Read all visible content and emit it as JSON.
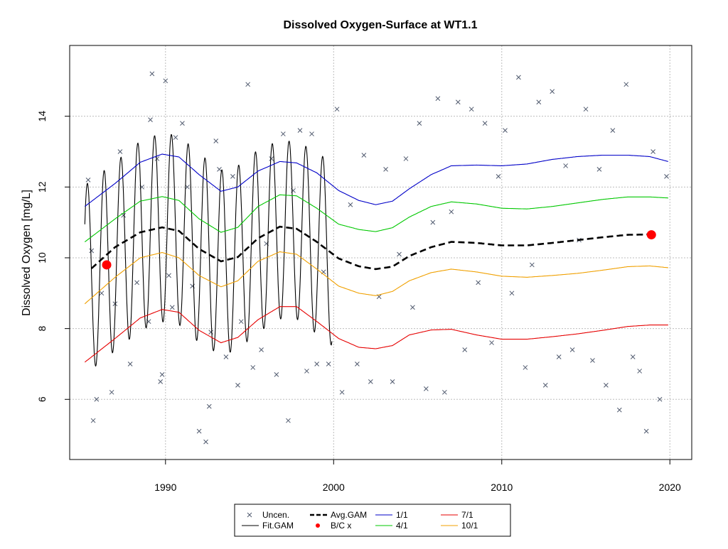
{
  "chart_data": {
    "type": "line",
    "title": "Dissolved Oxygen-Surface at WT1.1",
    "xlabel": "",
    "ylabel": "Dissolved Oxygen [mg/L]",
    "xlim": [
      1984.3,
      2021.3
    ],
    "ylim": [
      4.3,
      16.0
    ],
    "x_ticks": [
      1990,
      2000,
      2010,
      2020
    ],
    "y_ticks": [
      6,
      8,
      10,
      12,
      14
    ],
    "grid": true,
    "legend_position": "bottom",
    "colors": {
      "uncen": "#505a6e",
      "fit": "#000000",
      "avg": "#000000",
      "bc": "#ff0000",
      "p1": "#0000c8",
      "p4": "#00c800",
      "p7": "#e60000",
      "p10": "#f0a000"
    },
    "legend": [
      {
        "key": "uncen",
        "label": "Uncen.",
        "symbol": "cross"
      },
      {
        "key": "avg",
        "label": "Avg.GAM",
        "symbol": "dashed"
      },
      {
        "key": "p1",
        "label": "1/1",
        "symbol": "line"
      },
      {
        "key": "p7",
        "label": "7/1",
        "symbol": "line"
      },
      {
        "key": "fit",
        "label": "Fit.GAM",
        "symbol": "line"
      },
      {
        "key": "bc",
        "label": "B/C x",
        "symbol": "dot"
      },
      {
        "key": "p4",
        "label": "4/1",
        "symbol": "line"
      },
      {
        "key": "p10",
        "label": "10/1",
        "symbol": "line"
      }
    ],
    "series": [
      {
        "key": "p1",
        "name": "1/1",
        "style": "line",
        "x": [
          1985.2,
          1987,
          1988.5,
          1989.8,
          1990.8,
          1992,
          1993.3,
          1994.3,
          1995.5,
          1996.8,
          1997.8,
          1999,
          2000.3,
          2001.5,
          2002.5,
          2003.5,
          2004.5,
          2005.8,
          2007,
          2008.5,
          2010,
          2011.5,
          2013,
          2014.5,
          2016,
          2017.5,
          2018.8,
          2019.9
        ],
        "y": [
          11.45,
          12.1,
          12.7,
          12.93,
          12.85,
          12.35,
          11.88,
          12.0,
          12.45,
          12.72,
          12.68,
          12.4,
          11.9,
          11.62,
          11.5,
          11.6,
          11.95,
          12.35,
          12.6,
          12.62,
          12.6,
          12.65,
          12.78,
          12.86,
          12.9,
          12.9,
          12.86,
          12.72
        ]
      },
      {
        "key": "p4",
        "name": "4/1",
        "style": "line",
        "x": [
          1985.2,
          1987,
          1988.5,
          1989.8,
          1990.8,
          1992,
          1993.3,
          1994.3,
          1995.5,
          1996.8,
          1997.8,
          1999,
          2000.3,
          2001.5,
          2002.5,
          2003.5,
          2004.5,
          2005.8,
          2007,
          2008.5,
          2010,
          2011.5,
          2013,
          2014.5,
          2016,
          2017.5,
          2018.8,
          2019.9
        ],
        "y": [
          10.45,
          11.1,
          11.6,
          11.73,
          11.62,
          11.1,
          10.72,
          10.86,
          11.45,
          11.78,
          11.75,
          11.4,
          10.95,
          10.8,
          10.74,
          10.85,
          11.15,
          11.45,
          11.58,
          11.52,
          11.4,
          11.38,
          11.45,
          11.55,
          11.65,
          11.72,
          11.72,
          11.69
        ]
      },
      {
        "key": "p10",
        "name": "10/1",
        "style": "line",
        "x": [
          1985.2,
          1987,
          1988.5,
          1989.8,
          1990.8,
          1992,
          1993.3,
          1994.3,
          1995.5,
          1996.8,
          1997.8,
          1999,
          2000.3,
          2001.5,
          2002.5,
          2003.5,
          2004.5,
          2005.8,
          2007,
          2008.5,
          2010,
          2011.5,
          2013,
          2014.5,
          2016,
          2017.5,
          2018.8,
          2019.9
        ],
        "y": [
          8.7,
          9.45,
          10.0,
          10.15,
          10.0,
          9.5,
          9.18,
          9.35,
          9.9,
          10.17,
          10.1,
          9.68,
          9.2,
          9.0,
          8.93,
          9.05,
          9.35,
          9.58,
          9.68,
          9.6,
          9.48,
          9.45,
          9.5,
          9.56,
          9.65,
          9.75,
          9.77,
          9.72
        ]
      },
      {
        "key": "p7",
        "name": "7/1",
        "style": "line",
        "x": [
          1985.2,
          1987,
          1988.5,
          1989.8,
          1990.8,
          1992,
          1993.3,
          1994.3,
          1995.5,
          1996.8,
          1997.8,
          1999,
          2000.3,
          2001.5,
          2002.5,
          2003.5,
          2004.5,
          2005.8,
          2007,
          2008.5,
          2010,
          2011.5,
          2013,
          2014.5,
          2016,
          2017.5,
          2018.8,
          2019.9
        ],
        "y": [
          7.05,
          7.72,
          8.3,
          8.54,
          8.46,
          7.95,
          7.6,
          7.75,
          8.25,
          8.62,
          8.62,
          8.2,
          7.72,
          7.47,
          7.43,
          7.52,
          7.82,
          7.96,
          7.98,
          7.82,
          7.7,
          7.7,
          7.77,
          7.85,
          7.95,
          8.06,
          8.1,
          8.1
        ]
      },
      {
        "key": "avg",
        "name": "Avg.GAM",
        "style": "dashed",
        "x": [
          1985.6,
          1987,
          1988.5,
          1989.8,
          1990.8,
          1992,
          1993.3,
          1994.3,
          1995.5,
          1996.8,
          1997.8,
          1999,
          2000.3,
          2001.5,
          2002.5,
          2003.5,
          2004.5,
          2005.8,
          2007,
          2008.5,
          2010,
          2011.5,
          2013,
          2014.5,
          2016,
          2017.5,
          2018.8
        ],
        "y": [
          9.7,
          10.3,
          10.72,
          10.86,
          10.76,
          10.25,
          9.9,
          10.02,
          10.55,
          10.88,
          10.82,
          10.45,
          9.98,
          9.76,
          9.68,
          9.75,
          10.05,
          10.3,
          10.45,
          10.42,
          10.35,
          10.35,
          10.42,
          10.5,
          10.58,
          10.65,
          10.66
        ]
      }
    ],
    "fit_gam": {
      "name": "Fit.GAM",
      "start_year": 1985.2,
      "end_year": 1999.9,
      "period_years": 1,
      "phase": 0.15,
      "amplitude_scale": 1.0,
      "baseline_series": "avg",
      "upper_series": "p1",
      "lower_series": "p7"
    },
    "bc_points": {
      "name": "B/C x",
      "x": [
        1986.5,
        2018.9
      ],
      "y": [
        9.8,
        10.65
      ]
    },
    "uncen_points": {
      "name": "Uncen.",
      "x": [
        1985.4,
        1985.6,
        1985.7,
        1985.9,
        1986.2,
        1986.8,
        1987,
        1987.3,
        1987.5,
        1987.9,
        1988.3,
        1988.6,
        1989,
        1989.1,
        1989.2,
        1989.5,
        1989.7,
        1989.8,
        1990,
        1990.2,
        1990.4,
        1990.6,
        1991,
        1991.3,
        1991.6,
        1992,
        1992.4,
        1992.6,
        1992.7,
        1993,
        1993.2,
        1993.6,
        1994,
        1994.3,
        1994.5,
        1994.9,
        1995.2,
        1995.7,
        1996,
        1996.3,
        1996.6,
        1997,
        1997.3,
        1997.6,
        1998,
        1998.4,
        1998.7,
        1999,
        1999.4,
        1999.7,
        2000.2,
        2000.5,
        2001,
        2001.4,
        2001.8,
        2002.2,
        2002.7,
        2003.1,
        2003.5,
        2003.9,
        2004.3,
        2004.7,
        2005.1,
        2005.5,
        2005.9,
        2006.2,
        2006.6,
        2007,
        2007.4,
        2007.8,
        2008.2,
        2008.6,
        2009,
        2009.4,
        2009.8,
        2010.2,
        2010.6,
        2011,
        2011.4,
        2011.8,
        2012.2,
        2012.6,
        2013,
        2013.4,
        2013.8,
        2014.2,
        2014.6,
        2015,
        2015.4,
        2015.8,
        2016.2,
        2016.6,
        2017,
        2017.4,
        2017.8,
        2018.2,
        2018.6,
        2019,
        2019.4,
        2019.8
      ],
      "y": [
        12.2,
        10.2,
        5.4,
        6.0,
        9.0,
        6.2,
        8.7,
        13.0,
        11.2,
        7.0,
        9.3,
        12.0,
        8.2,
        13.9,
        15.2,
        12.8,
        6.5,
        6.7,
        15.0,
        9.5,
        8.6,
        13.4,
        13.8,
        12.0,
        9.2,
        5.1,
        4.8,
        5.8,
        7.9,
        13.3,
        12.5,
        7.2,
        12.3,
        6.4,
        8.2,
        14.9,
        6.9,
        7.4,
        10.4,
        12.8,
        6.7,
        13.5,
        5.4,
        11.9,
        13.6,
        6.8,
        13.5,
        7.0,
        9.6,
        7.0,
        14.2,
        6.2,
        11.5,
        7.0,
        12.9,
        6.5,
        8.9,
        12.5,
        6.5,
        10.1,
        12.8,
        8.6,
        13.8,
        6.3,
        11.0,
        14.5,
        6.2,
        11.3,
        14.4,
        7.4,
        14.2,
        9.3,
        13.8,
        7.6,
        12.3,
        13.6,
        9.0,
        15.1,
        6.9,
        9.8,
        14.4,
        6.4,
        14.7,
        7.2,
        12.6,
        7.4,
        10.5,
        14.2,
        7.1,
        12.5,
        6.4,
        13.6,
        5.7,
        14.9,
        7.2,
        6.8,
        5.1,
        13.0,
        6.0,
        12.3
      ]
    }
  }
}
